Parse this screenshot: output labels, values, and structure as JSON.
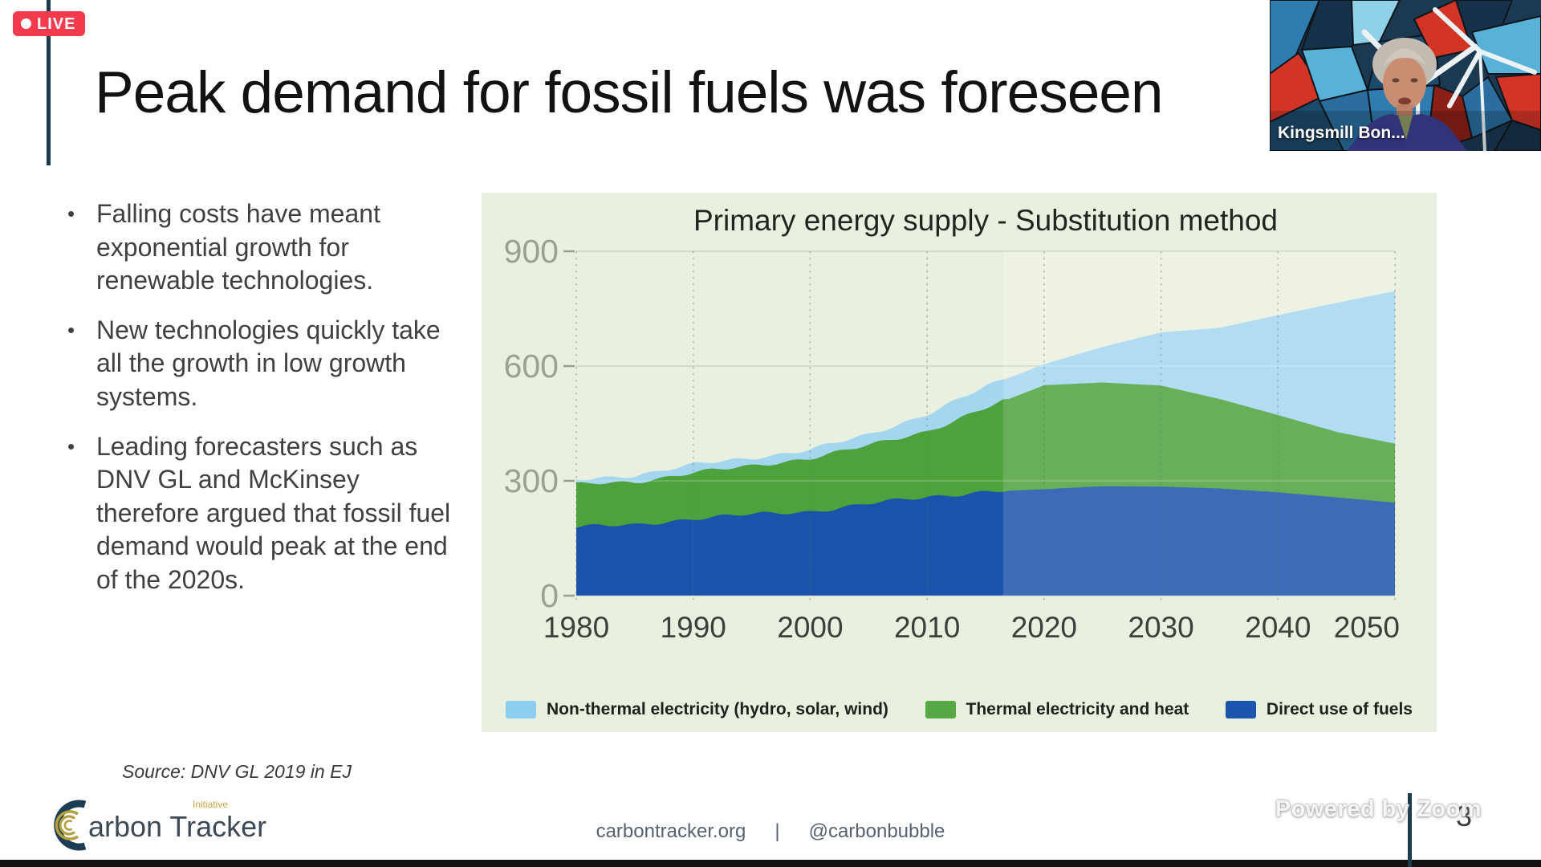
{
  "live_badge": {
    "label": "LIVE"
  },
  "slide": {
    "title": "Peak demand for fossil fuels was foreseen",
    "bullets": [
      "Falling costs have meant exponential growth for renewable technologies.",
      "New technologies quickly take all the growth in low growth systems.",
      "Leading forecasters such as DNV GL and McKinsey therefore argued that fossil fuel demand would peak at the end of the 2020s."
    ],
    "source_note": "Source: DNV GL 2019 in EJ",
    "page_number": "3"
  },
  "webcam": {
    "participant_name": "Kingsmill Bon..."
  },
  "watermark": {
    "text": "Powered by Zoom"
  },
  "logo": {
    "name": "Carbon Tracker",
    "wordmark_rest": "arbon Tracker",
    "initiative": "Initiative"
  },
  "footer": {
    "website": "carbontracker.org",
    "separator": "|",
    "twitter": "@carbonbubble"
  },
  "colors": {
    "accent_line": "#1e3c50",
    "live_red": "#f43b4e",
    "panel_bg": "#eaf0e0",
    "bottom_bar": "#111111",
    "axis_label_gray": "#99a192",
    "x_label_dark": "#3a403a"
  },
  "chart_data": {
    "type": "area",
    "stacked": true,
    "title": "Primary energy supply - Substitution method",
    "xlabel": "",
    "ylabel": "",
    "ylim": [
      0,
      900
    ],
    "yticks": [
      0,
      300,
      600,
      900
    ],
    "xticks": [
      1980,
      1990,
      2000,
      2010,
      2020,
      2030,
      2040,
      2050
    ],
    "x": [
      1980,
      1985,
      1990,
      1995,
      2000,
      2005,
      2010,
      2015,
      2020,
      2025,
      2030,
      2035,
      2040,
      2045,
      2050
    ],
    "series": [
      {
        "name": "Direct use of fuels",
        "color": "#1a53ab",
        "values": [
          180,
          184,
          202,
          212,
          220,
          240,
          258,
          272,
          278,
          286,
          285,
          280,
          270,
          257,
          243
        ]
      },
      {
        "name": "Thermal electricity and heat",
        "color": "#4da23c",
        "values": [
          110,
          113,
          120,
          126,
          140,
          152,
          172,
          218,
          272,
          271,
          264,
          234,
          202,
          171,
          154
        ]
      },
      {
        "name": "Non-thermal electricity (hydro, solar, wind)",
        "color": "#a4d6f0",
        "values": [
          12,
          18,
          20,
          22,
          22,
          28,
          45,
          55,
          55,
          93,
          139,
          186,
          261,
          337,
          399
        ]
      }
    ],
    "legend": [
      {
        "label": "Non-thermal electricity (hydro, solar, wind)",
        "color": "#8ccef0"
      },
      {
        "label": "Thermal electricity and heat",
        "color": "#57a946"
      },
      {
        "label": "Direct use of fuels",
        "color": "#1b55ae"
      }
    ],
    "legend_position": "bottom",
    "grid": "horizontal solid, vertical dashed at decades",
    "forecast_start_year": 2016.5,
    "forecast_overlay": "rgba(255,255,255,0.15)"
  }
}
